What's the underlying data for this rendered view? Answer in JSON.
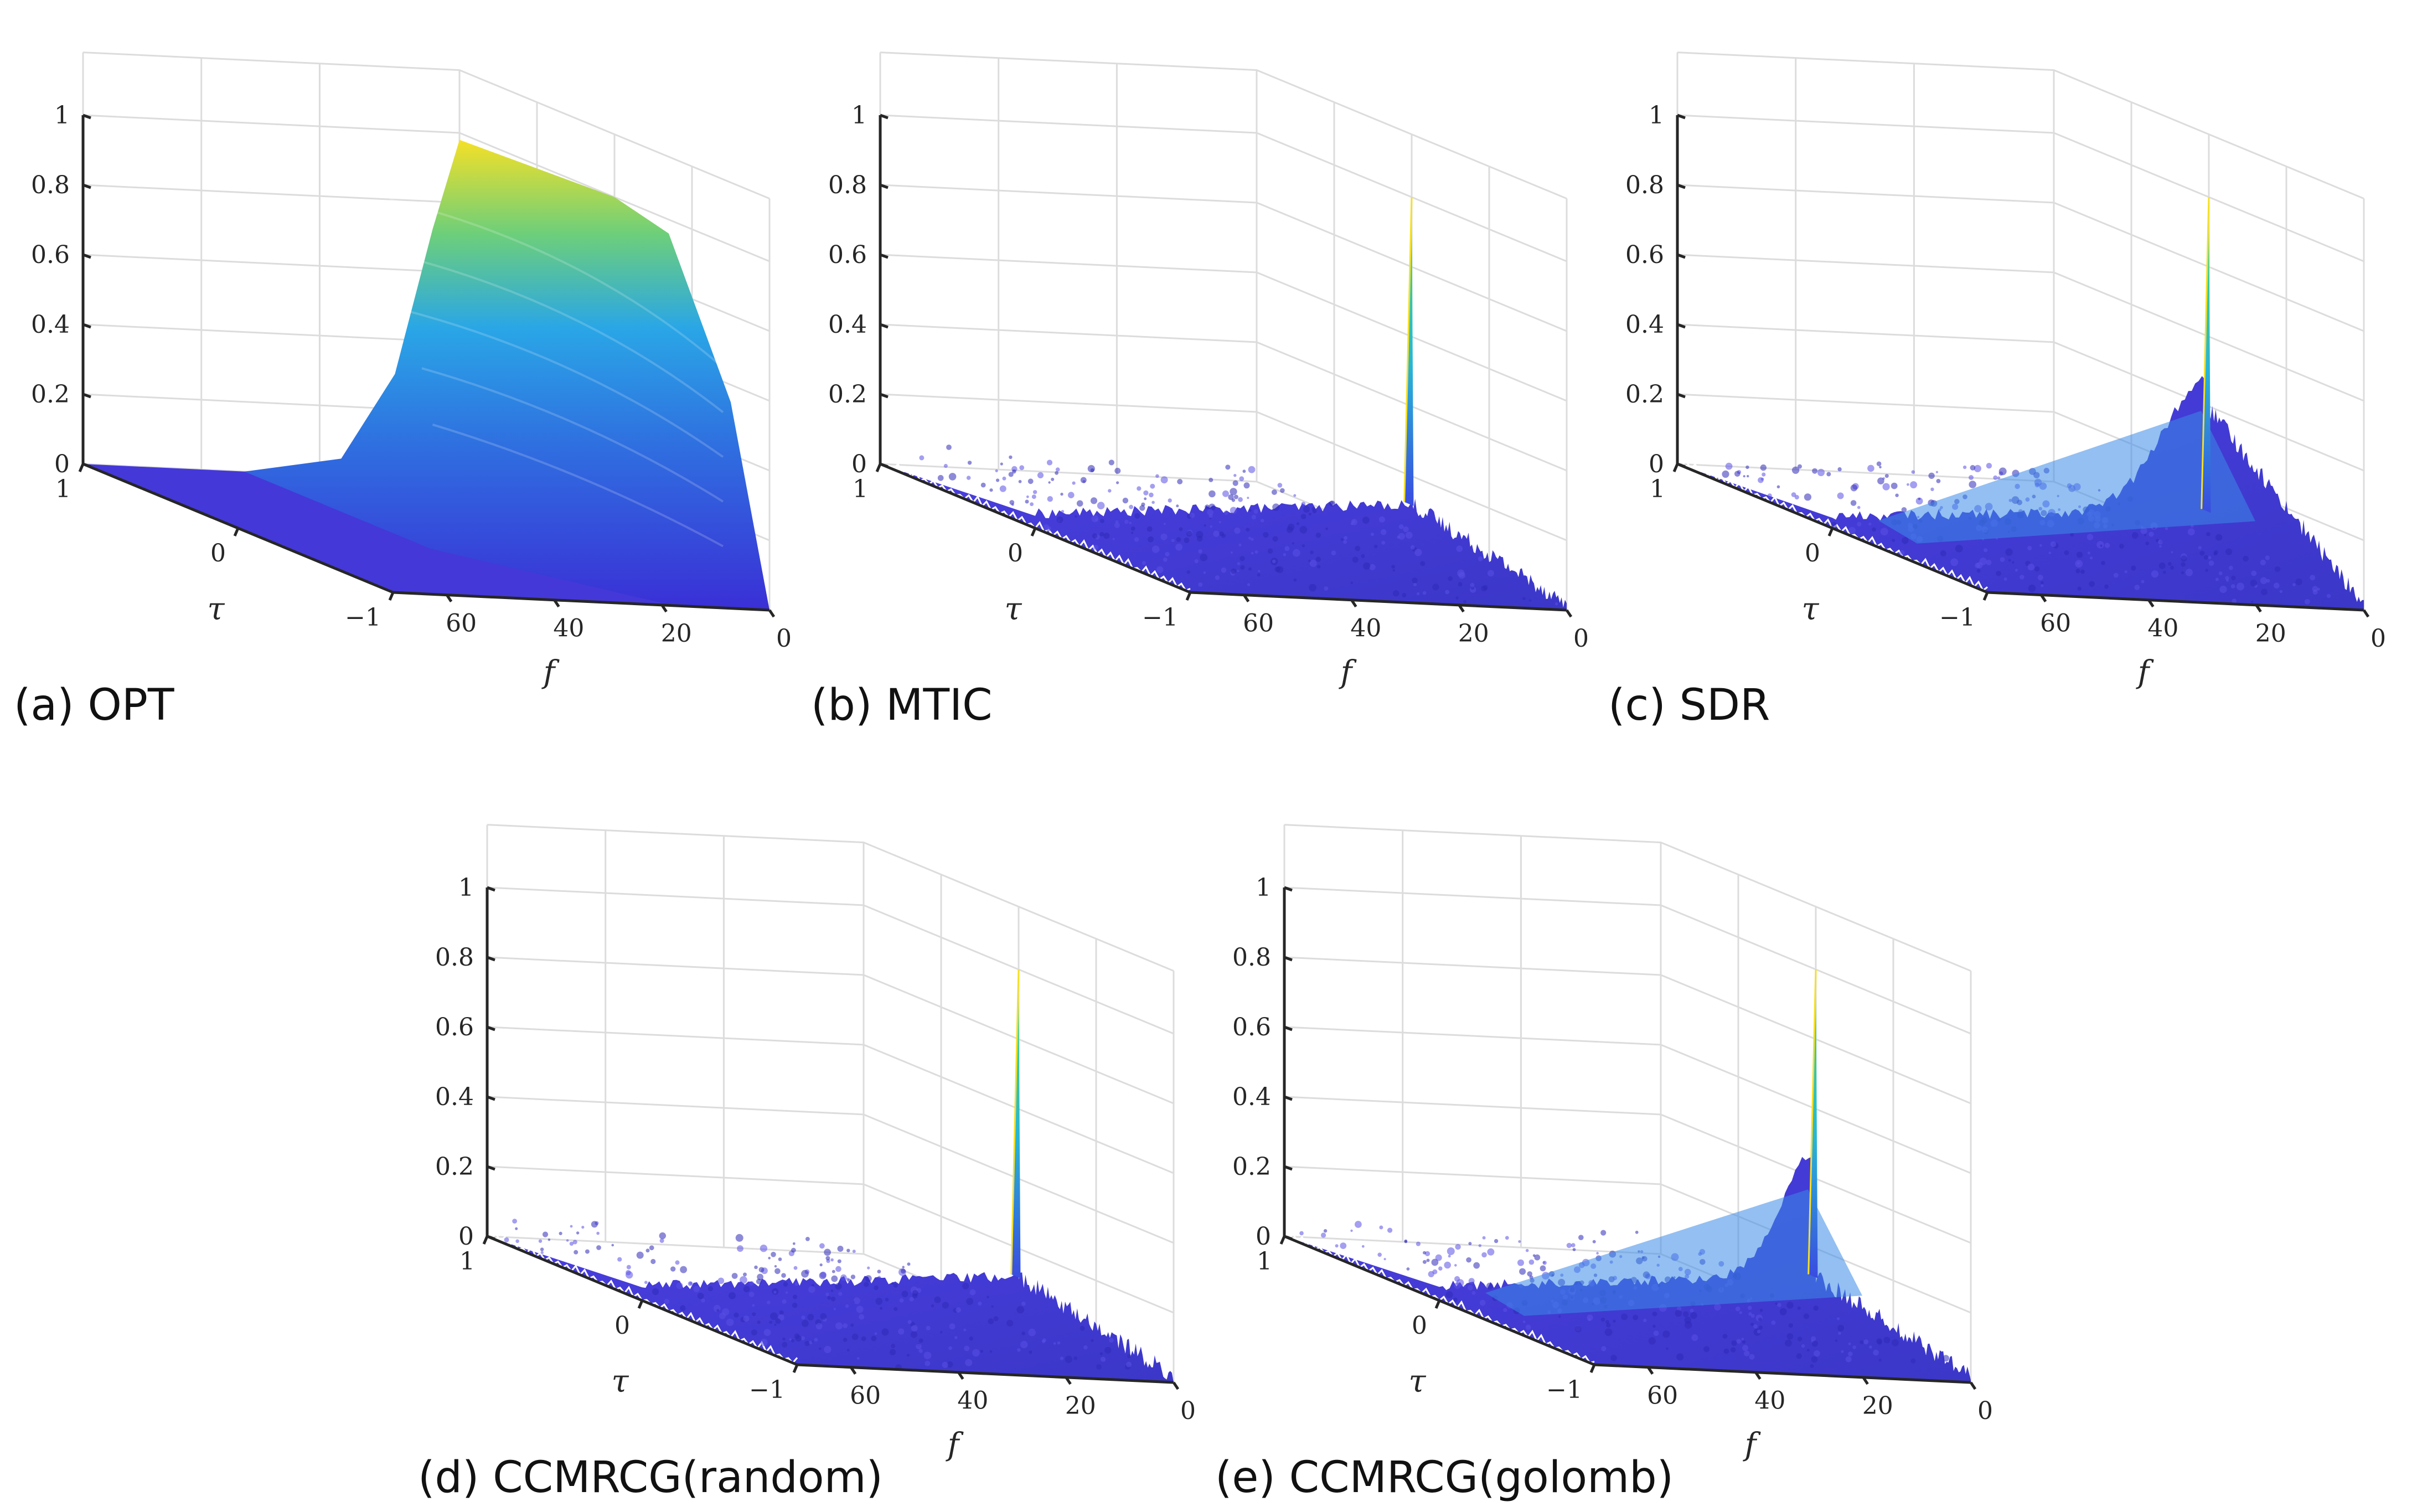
{
  "figure": {
    "colors": {
      "axis": "#262626",
      "grid": "#dcdcdc",
      "low": "#3a2fd6",
      "mid": "#2aa6e6",
      "teal": "#27c2b0",
      "high": "#f5e027"
    }
  },
  "chart_data": [
    {
      "type": "surface",
      "caption": "(a) OPT",
      "xlabel": "f",
      "ylabel": "τ",
      "zlabel": "",
      "xlim": [
        0,
        70
      ],
      "ylim": [
        -1,
        1
      ],
      "zlim": [
        0,
        1
      ],
      "x_ticks": [
        "0",
        "20",
        "40",
        "60"
      ],
      "y_ticks": [
        "1",
        "0",
        "−1"
      ],
      "z_ticks": [
        "0",
        "0.2",
        "0.4",
        "0.6",
        "0.8",
        "1"
      ],
      "peak": {
        "f": 0,
        "tau": 0,
        "value": 1.0
      },
      "surface_profile": "smooth broad mainlobe decaying along f; near zero elsewhere",
      "floor_level": 0.0,
      "ridge_level": 0.0
    },
    {
      "type": "surface",
      "caption": "(b) MTIC",
      "xlabel": "f",
      "ylabel": "τ",
      "zlabel": "",
      "xlim": [
        0,
        70
      ],
      "ylim": [
        -1,
        1
      ],
      "zlim": [
        0,
        1
      ],
      "x_ticks": [
        "0",
        "20",
        "40",
        "60"
      ],
      "y_ticks": [
        "1",
        "0",
        "−1"
      ],
      "z_ticks": [
        "0",
        "0.2",
        "0.4",
        "0.6",
        "0.8",
        "1"
      ],
      "peak": {
        "f": 0,
        "tau": 0,
        "value": 1.0
      },
      "surface_profile": "narrow spike with noisy sidelobes",
      "floor_level": 0.12,
      "ridge_level": 0.18
    },
    {
      "type": "surface",
      "caption": "(c) SDR",
      "xlabel": "f",
      "ylabel": "τ",
      "zlabel": "",
      "xlim": [
        0,
        70
      ],
      "ylim": [
        -1,
        1
      ],
      "zlim": [
        0,
        1
      ],
      "x_ticks": [
        "0",
        "20",
        "40",
        "60"
      ],
      "y_ticks": [
        "1",
        "0",
        "−1"
      ],
      "z_ticks": [
        "0",
        "0.2",
        "0.4",
        "0.6",
        "0.8",
        "1"
      ],
      "peak": {
        "f": 0,
        "tau": 0,
        "value": 1.0
      },
      "surface_profile": "narrow spike over a raised ridge near low f",
      "floor_level": 0.1,
      "ridge_level": 0.42
    },
    {
      "type": "surface",
      "caption": "(d) CCMRCG(random)",
      "xlabel": "f",
      "ylabel": "τ",
      "zlabel": "",
      "xlim": [
        0,
        70
      ],
      "ylim": [
        -1,
        1
      ],
      "zlim": [
        0,
        1
      ],
      "x_ticks": [
        "0",
        "20",
        "40",
        "60"
      ],
      "y_ticks": [
        "1",
        "0",
        "−1"
      ],
      "z_ticks": [
        "0",
        "0.2",
        "0.4",
        "0.6",
        "0.8",
        "1"
      ],
      "peak": {
        "f": 0,
        "tau": 0,
        "value": 1.0
      },
      "surface_profile": "narrow spike with noisy sidelobes",
      "floor_level": 0.12,
      "ridge_level": 0.2
    },
    {
      "type": "surface",
      "caption": "(e) CCMRCG(golomb)",
      "xlabel": "f",
      "ylabel": "τ",
      "zlabel": "",
      "xlim": [
        0,
        70
      ],
      "ylim": [
        -1,
        1
      ],
      "zlim": [
        0,
        1
      ],
      "x_ticks": [
        "0",
        "20",
        "40",
        "60"
      ],
      "y_ticks": [
        "1",
        "0",
        "−1"
      ],
      "z_ticks": [
        "0",
        "0.2",
        "0.4",
        "0.6",
        "0.8",
        "1"
      ],
      "peak": {
        "f": 0,
        "tau": 0,
        "value": 1.0
      },
      "surface_profile": "narrow spike with rising sidelobe ridge along tau = 0",
      "floor_level": 0.12,
      "ridge_level": 0.4
    }
  ]
}
